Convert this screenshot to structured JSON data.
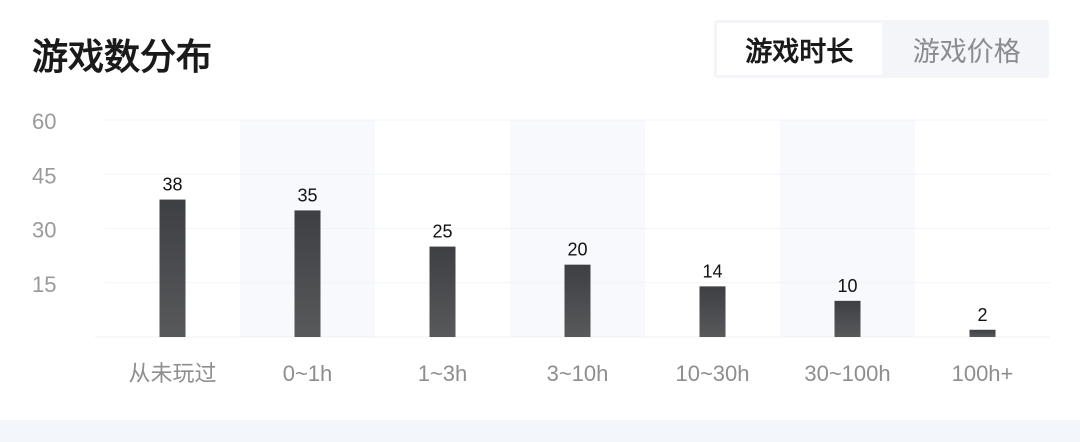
{
  "header": {
    "title": "游戏数分布"
  },
  "tabs": [
    {
      "label": "游戏时长",
      "active": true
    },
    {
      "label": "游戏价格",
      "active": false
    }
  ],
  "colors": {
    "bar": "#4a4b4e",
    "band": "#f7f9fc"
  },
  "chart_data": {
    "type": "bar",
    "categories": [
      "从未玩过",
      "0~1h",
      "1~3h",
      "3~10h",
      "10~30h",
      "30~100h",
      "100h+"
    ],
    "values": [
      38,
      35,
      25,
      20,
      14,
      10,
      2
    ],
    "ylim": [
      0,
      60
    ],
    "yticks": [
      15,
      30,
      45,
      60
    ],
    "grid": true,
    "title": "",
    "xlabel": "",
    "ylabel": ""
  }
}
